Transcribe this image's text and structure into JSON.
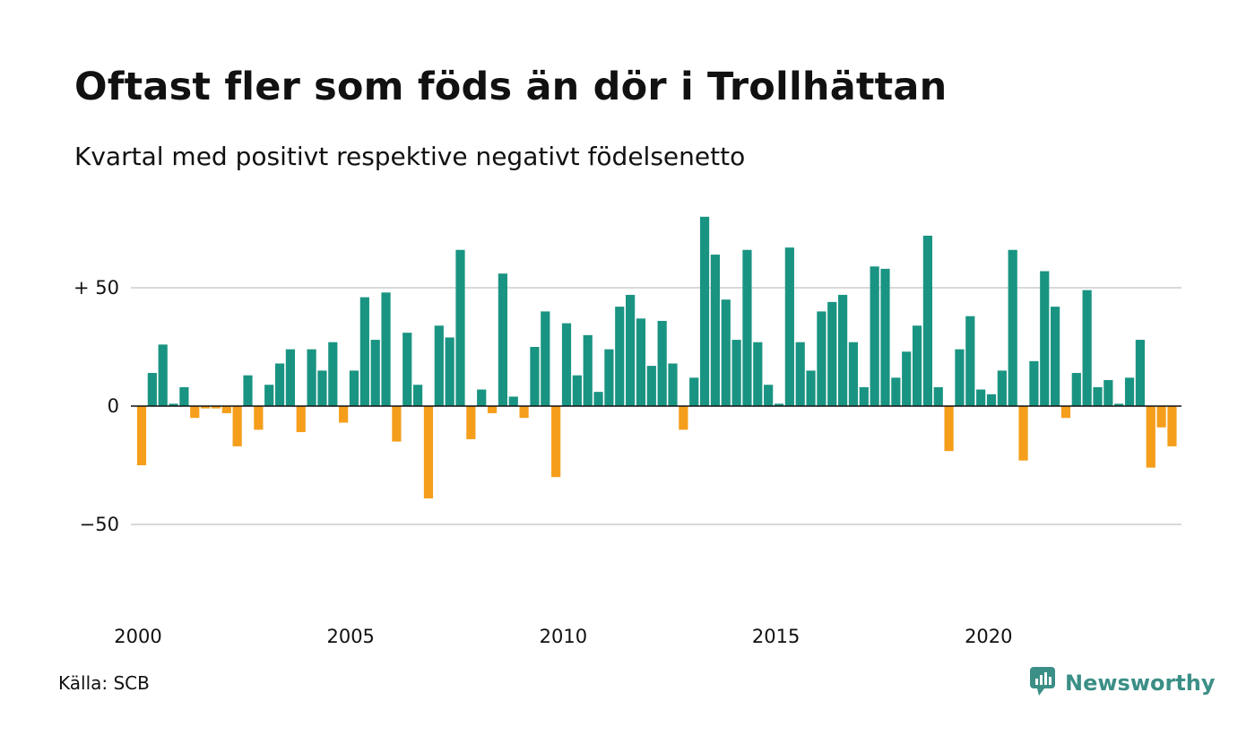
{
  "chart_data": {
    "type": "bar",
    "title": "Oftast fler som föds än dör i Trollhättan",
    "subtitle": "Kvartal med positivt respektive negativt födelsenetto",
    "xlabel": "",
    "ylabel": "",
    "x_ticks": [
      "2000",
      "2005",
      "2010",
      "2015",
      "2020"
    ],
    "y_ticks": [
      {
        "value": 50,
        "label": "+ 50"
      },
      {
        "value": 0,
        "label": "0"
      },
      {
        "value": -50,
        "label": "−50"
      }
    ],
    "ylim": [
      -80,
      80
    ],
    "start_year": 2000,
    "quarters_per_year": 4,
    "positive_color": "#1a9482",
    "negative_color": "#f59e1b",
    "grid": true,
    "legend": "none",
    "values": [
      -25,
      14,
      26,
      1,
      8,
      -5,
      -1,
      -1,
      -3,
      -17,
      13,
      -10,
      9,
      18,
      24,
      -11,
      24,
      15,
      27,
      -7,
      15,
      46,
      28,
      48,
      -15,
      31,
      9,
      -39,
      34,
      29,
      66,
      -14,
      7,
      -3,
      56,
      4,
      -5,
      25,
      40,
      -30,
      35,
      13,
      30,
      6,
      24,
      42,
      47,
      37,
      17,
      36,
      18,
      -10,
      12,
      80,
      64,
      45,
      28,
      66,
      27,
      9,
      1,
      67,
      27,
      15,
      40,
      44,
      47,
      27,
      8,
      59,
      58,
      12,
      23,
      34,
      72,
      8,
      -19,
      24,
      38,
      7,
      5,
      15,
      66,
      -23,
      19,
      57,
      42,
      -5,
      14,
      49,
      8,
      11,
      1,
      12,
      28,
      -26,
      -9,
      -17
    ]
  },
  "footer": {
    "source": "Källa: SCB",
    "brand": "Newsworthy",
    "brand_color": "#3b8f86",
    "logo_icon": "newsworthy-logo-icon"
  }
}
